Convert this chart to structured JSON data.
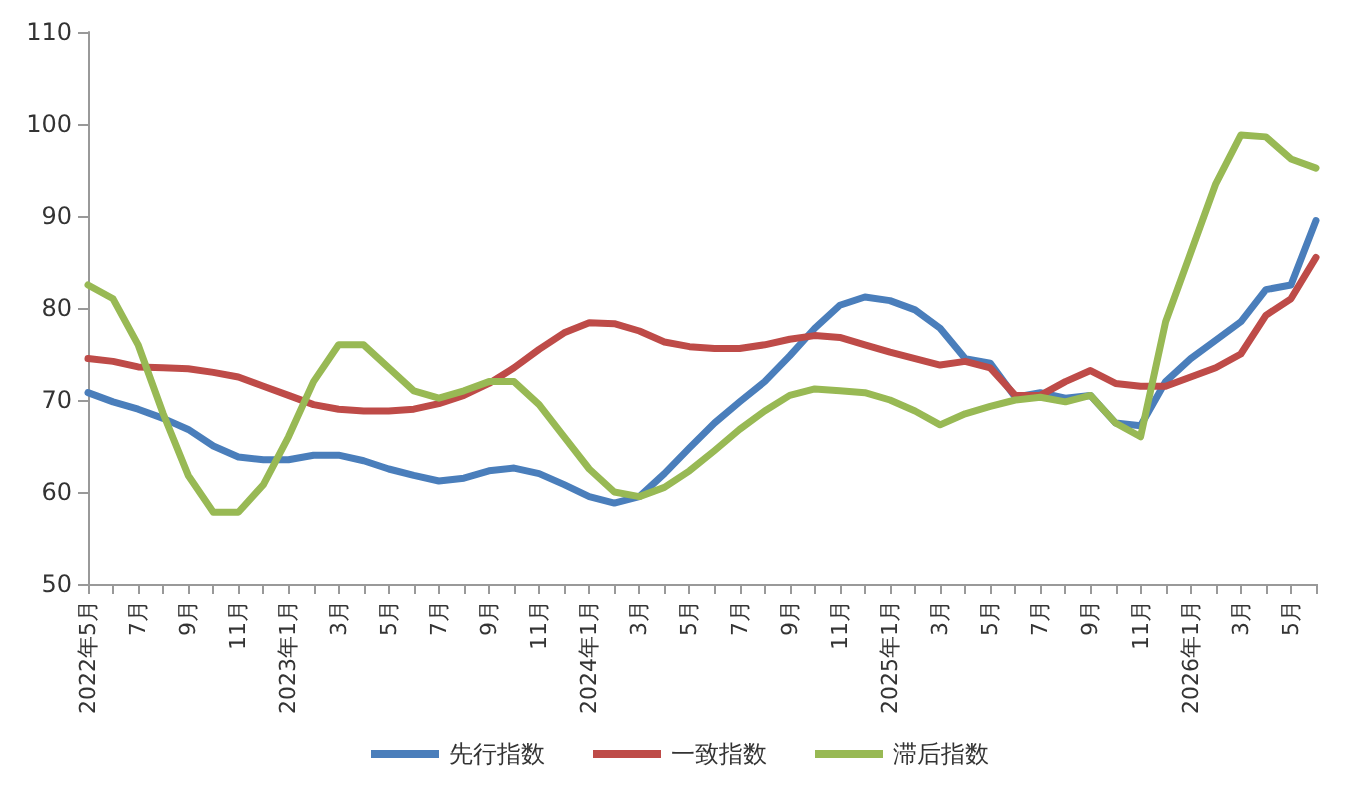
{
  "chart_data": {
    "type": "line",
    "categories": [
      "2022年5月",
      null,
      "7月",
      null,
      "9月",
      null,
      "11月",
      null,
      "2023年1月",
      null,
      "3月",
      null,
      "5月",
      null,
      "7月",
      null,
      "9月",
      null,
      "11月",
      null,
      "2024年1月",
      null,
      "3月",
      null,
      "5月",
      null,
      "7月",
      null,
      "9月",
      null,
      "11月",
      null,
      "2025年1月",
      null,
      "3月",
      null,
      "5月",
      null,
      "7月",
      null,
      "9月",
      null,
      "11月",
      null,
      "2026年1月",
      null,
      "3月",
      null,
      "5月",
      null
    ],
    "series": [
      {
        "name": "先行指数",
        "color": "#4a7ebb",
        "values": [
          70.8,
          69.8,
          69,
          68,
          66.8,
          65,
          63.8,
          63.5,
          63.5,
          64,
          64,
          63.4,
          62.5,
          61.8,
          61.2,
          61.5,
          62.3,
          62.6,
          62,
          60.8,
          59.5,
          58.8,
          59.5,
          62,
          64.8,
          67.5,
          69.8,
          72,
          74.8,
          77.8,
          80.3,
          81.2,
          80.8,
          79.8,
          77.8,
          74.5,
          74,
          70.3,
          70.8,
          70.2,
          70.5,
          67.5,
          67.2,
          72,
          74.5,
          76.5,
          78.5,
          82,
          82.5,
          89.5
        ]
      },
      {
        "name": "一致指数",
        "color": "#be4b48",
        "values": [
          74.5,
          74.2,
          73.6,
          73.5,
          73.4,
          73,
          72.5,
          71.5,
          70.5,
          69.5,
          69,
          68.8,
          68.8,
          69,
          69.6,
          70.5,
          71.8,
          73.5,
          75.5,
          77.3,
          78.4,
          78.3,
          77.5,
          76.3,
          75.8,
          75.6,
          75.6,
          76,
          76.6,
          77,
          76.8,
          76,
          75.2,
          74.5,
          73.8,
          74.2,
          73.5,
          70.5,
          70.5,
          72,
          73.2,
          71.8,
          71.5,
          71.5,
          72.5,
          73.5,
          75,
          79.2,
          81,
          85.5
        ]
      },
      {
        "name": "滞后指数",
        "color": "#98b954",
        "values": [
          82.5,
          81,
          76,
          68.5,
          61.8,
          57.8,
          57.8,
          60.8,
          66,
          72,
          76,
          76,
          73.5,
          71,
          70.2,
          71,
          72,
          72,
          69.5,
          66,
          62.5,
          60,
          59.5,
          60.5,
          62.3,
          64.5,
          66.8,
          68.8,
          70.5,
          71.2,
          71,
          70.8,
          70,
          68.8,
          67.3,
          68.5,
          69.3,
          70,
          70.3,
          69.8,
          70.5,
          67.5,
          66,
          78.5,
          86,
          93.5,
          98.8,
          98.6,
          96.2,
          95.2
        ]
      }
    ],
    "ylim": [
      50,
      110
    ],
    "yticks": [
      50,
      60,
      70,
      80,
      90,
      100,
      110
    ],
    "grid": false,
    "legend": "bottom",
    "marker": "none",
    "line_style": "solid"
  }
}
